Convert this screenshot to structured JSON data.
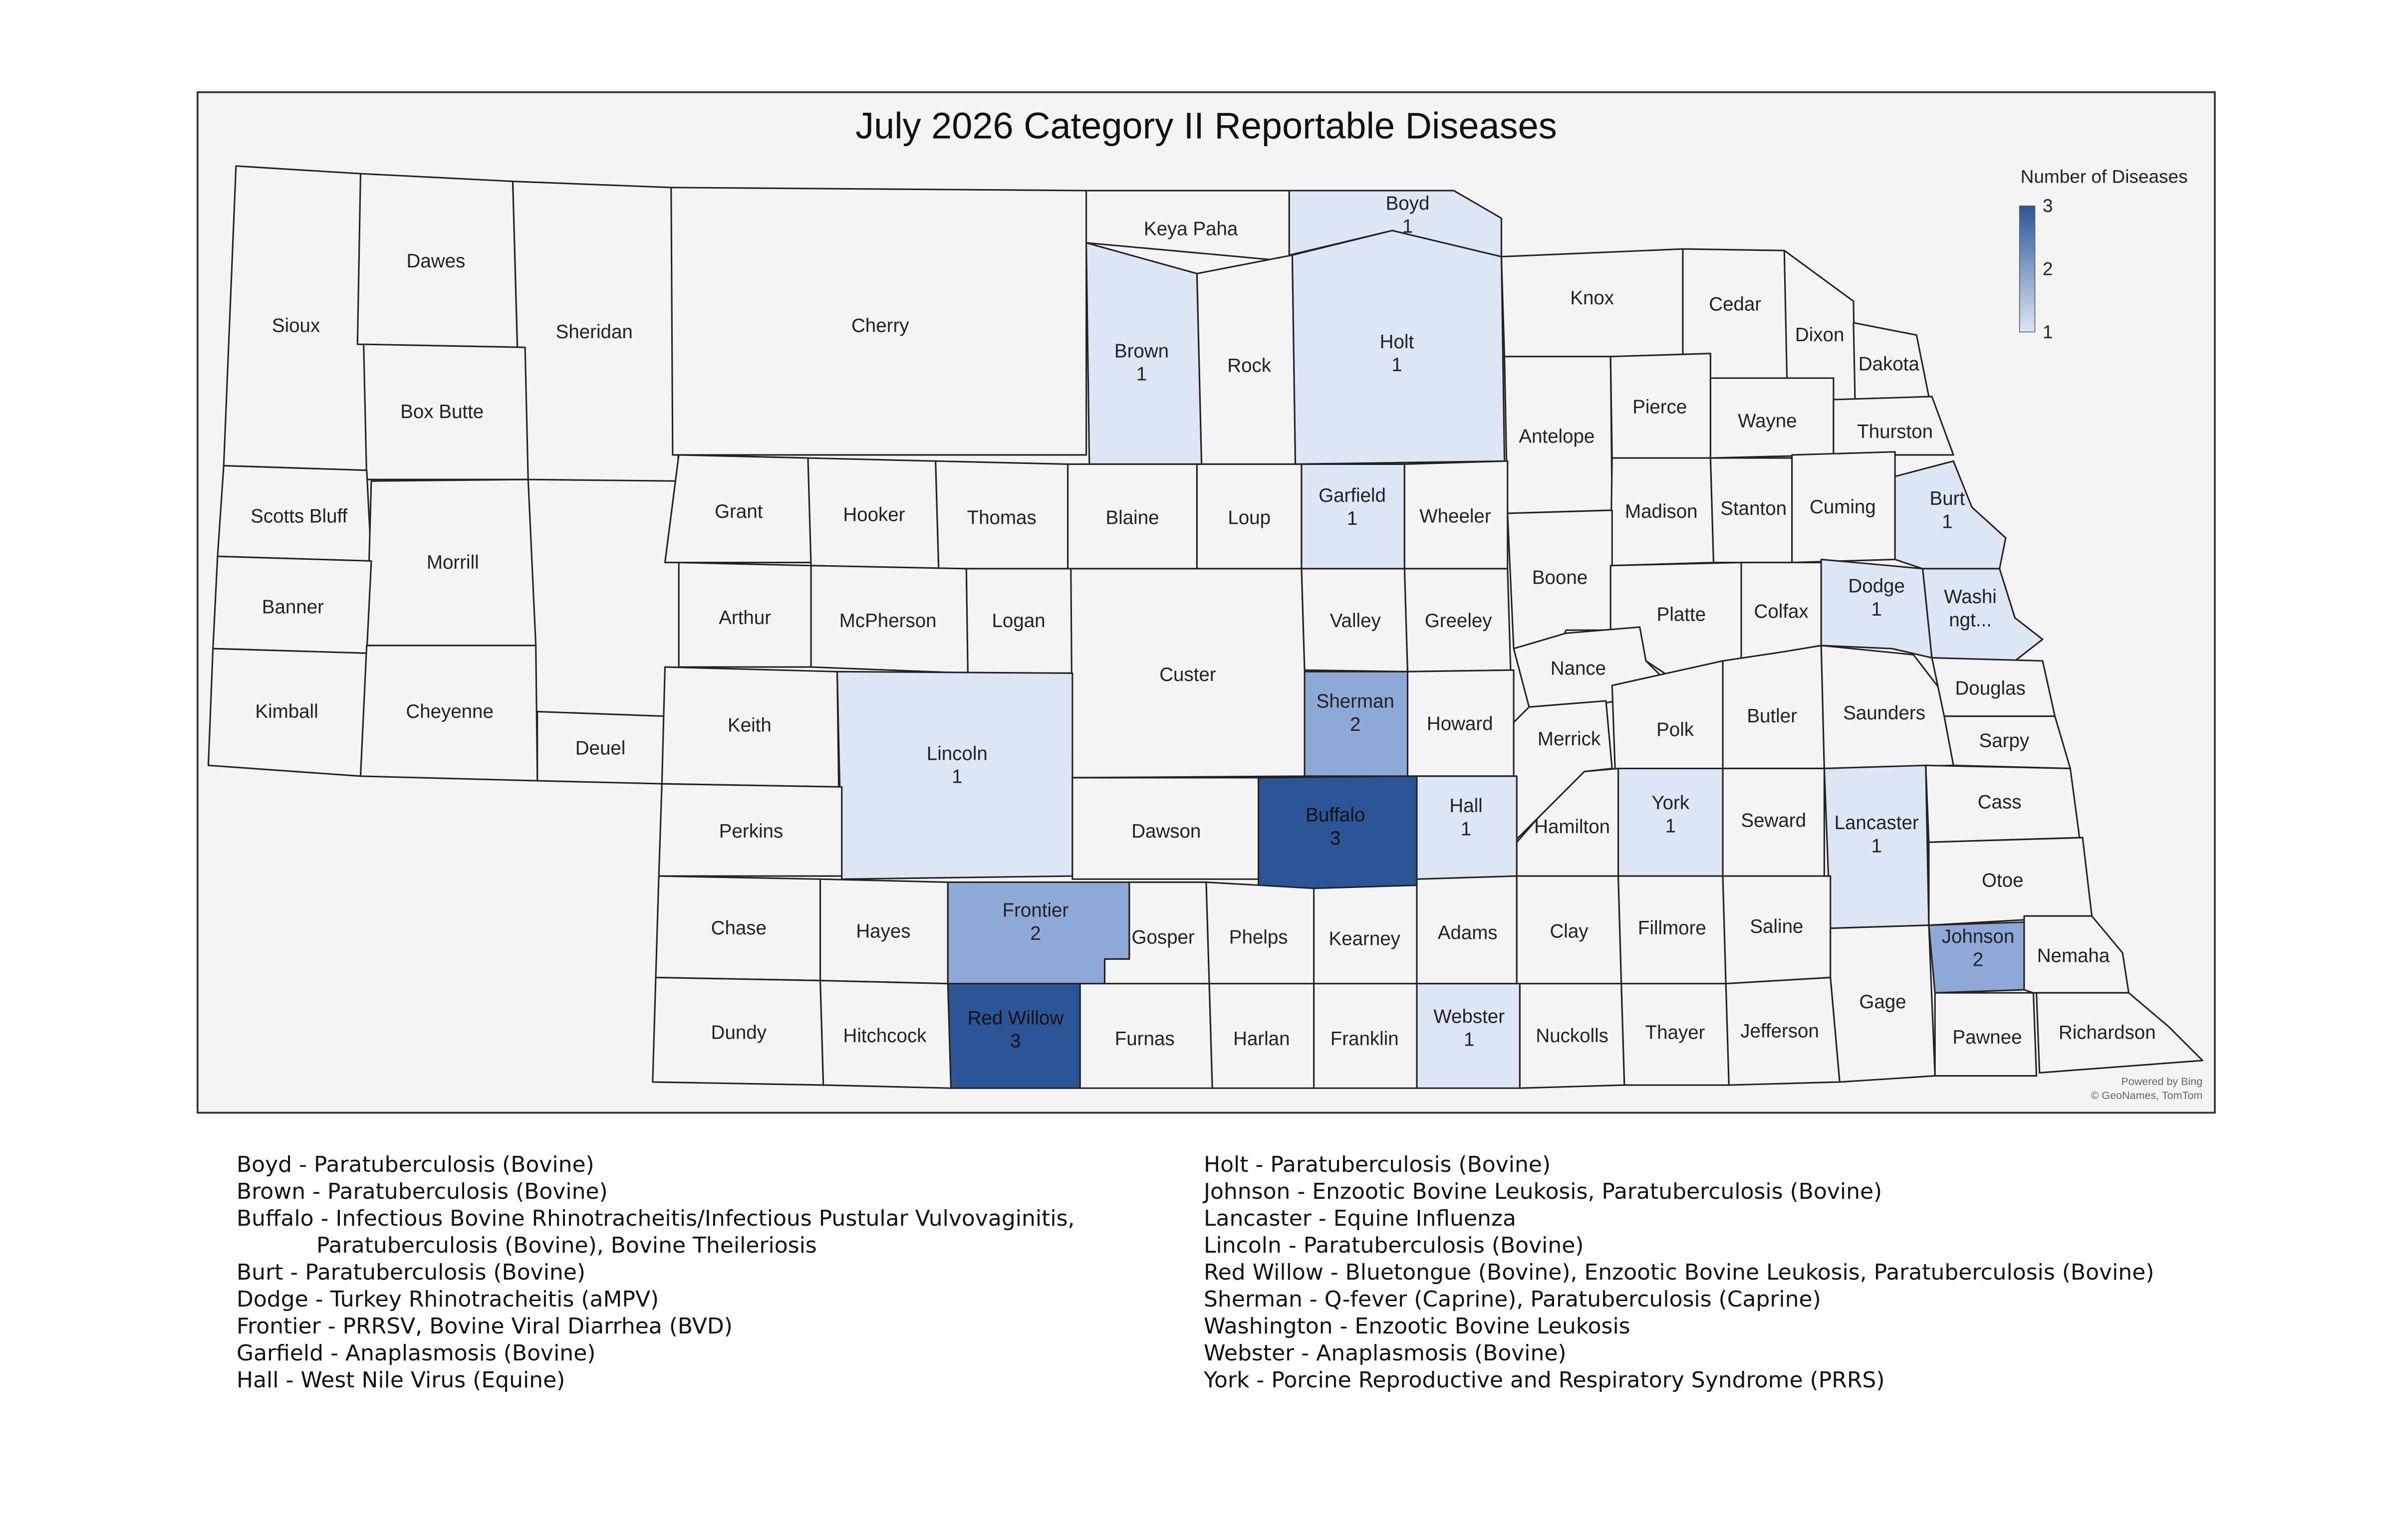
{
  "title": "July 2026 Category II Reportable Diseases",
  "legend": {
    "title": "Number of Diseases",
    "max_label": "3",
    "mid_label": "2",
    "min_label": "1",
    "min_color": "#dce6f4",
    "max_color": "#2b5597"
  },
  "colors": {
    "none": "#f4f4f4",
    "level1": "#dce6f4",
    "level2": "#8ea9d8",
    "level3": "#2b5597",
    "border": "#222222"
  },
  "attribution": {
    "line1": "Powered by Bing",
    "line2": "© GeoNames, TomTom"
  },
  "counties": [
    {
      "name": "Sioux"
    },
    {
      "name": "Dawes"
    },
    {
      "name": "Sheridan"
    },
    {
      "name": "Cherry"
    },
    {
      "name": "Keya Paha"
    },
    {
      "name": "Boyd",
      "count": "1",
      "level": 1
    },
    {
      "name": "Brown",
      "count": "1",
      "level": 1
    },
    {
      "name": "Rock"
    },
    {
      "name": "Holt",
      "count": "1",
      "level": 1
    },
    {
      "name": "Knox"
    },
    {
      "name": "Cedar"
    },
    {
      "name": "Dixon"
    },
    {
      "name": "Dakota"
    },
    {
      "name": "Box Butte"
    },
    {
      "name": "Antelope"
    },
    {
      "name": "Pierce"
    },
    {
      "name": "Wayne"
    },
    {
      "name": "Thurston"
    },
    {
      "name": "Scotts Bluff"
    },
    {
      "name": "Morrill"
    },
    {
      "name": "Grant"
    },
    {
      "name": "Hooker"
    },
    {
      "name": "Thomas"
    },
    {
      "name": "Blaine"
    },
    {
      "name": "Loup"
    },
    {
      "name": "Garfield",
      "count": "1",
      "level": 1
    },
    {
      "name": "Wheeler"
    },
    {
      "name": "Madison"
    },
    {
      "name": "Stanton"
    },
    {
      "name": "Cuming"
    },
    {
      "name": "Burt",
      "count": "1",
      "level": 1
    },
    {
      "name": "Banner"
    },
    {
      "name": "Arthur"
    },
    {
      "name": "McPherson"
    },
    {
      "name": "Logan"
    },
    {
      "name": "Custer"
    },
    {
      "name": "Valley"
    },
    {
      "name": "Greeley"
    },
    {
      "name": "Boone"
    },
    {
      "name": "Platte"
    },
    {
      "name": "Colfax"
    },
    {
      "name": "Dodge",
      "count": "1",
      "level": 1
    },
    {
      "name": "Washi\nngt...",
      "count": "",
      "level": 1
    },
    {
      "name": "Kimball"
    },
    {
      "name": "Cheyenne"
    },
    {
      "name": "Deuel"
    },
    {
      "name": "Keith"
    },
    {
      "name": "Lincoln",
      "count": "1",
      "level": 1
    },
    {
      "name": "Sherman",
      "count": "2",
      "level": 2
    },
    {
      "name": "Howard"
    },
    {
      "name": "Nance"
    },
    {
      "name": "Merrick"
    },
    {
      "name": "Polk"
    },
    {
      "name": "Butler"
    },
    {
      "name": "Saunders"
    },
    {
      "name": "Douglas"
    },
    {
      "name": "Sarpy"
    },
    {
      "name": "Perkins"
    },
    {
      "name": "Dawson"
    },
    {
      "name": "Buffalo",
      "count": "3",
      "level": 3
    },
    {
      "name": "Hall",
      "count": "1",
      "level": 1
    },
    {
      "name": "Hamilton"
    },
    {
      "name": "York",
      "count": "1",
      "level": 1
    },
    {
      "name": "Seward"
    },
    {
      "name": "Lancaster",
      "count": "1",
      "level": 1
    },
    {
      "name": "Cass"
    },
    {
      "name": "Otoe"
    },
    {
      "name": "Chase"
    },
    {
      "name": "Hayes"
    },
    {
      "name": "Frontier",
      "count": "2",
      "level": 2
    },
    {
      "name": "Gosper"
    },
    {
      "name": "Phelps"
    },
    {
      "name": "Kearney"
    },
    {
      "name": "Adams"
    },
    {
      "name": "Clay"
    },
    {
      "name": "Fillmore"
    },
    {
      "name": "Saline"
    },
    {
      "name": "Gage"
    },
    {
      "name": "Johnson",
      "count": "2",
      "level": 2
    },
    {
      "name": "Nemaha"
    },
    {
      "name": "Dundy"
    },
    {
      "name": "Hitchcock"
    },
    {
      "name": "Red Willow",
      "count": "3",
      "level": 3
    },
    {
      "name": "Furnas"
    },
    {
      "name": "Harlan"
    },
    {
      "name": "Franklin"
    },
    {
      "name": "Webster",
      "count": "1",
      "level": 1
    },
    {
      "name": "Nuckolls"
    },
    {
      "name": "Thayer"
    },
    {
      "name": "Jefferson"
    },
    {
      "name": "Pawnee"
    },
    {
      "name": "Richardson"
    }
  ],
  "notes_left": [
    "Boyd - Paratuberculosis (Bovine)",
    "Brown - Paratuberculosis (Bovine)",
    "Buffalo - Infectious Bovine Rhinotracheitis/Infectious Pustular Vulvovaginitis,",
    "Paratuberculosis (Bovine), Bovine Theileriosis",
    "Burt - Paratuberculosis (Bovine)",
    "Dodge - Turkey Rhinotracheitis (aMPV)",
    "Frontier - PRRSV, Bovine Viral Diarrhea (BVD)",
    "Garfield - Anaplasmosis (Bovine)",
    "Hall - West Nile Virus (Equine)"
  ],
  "notes_right": [
    "Holt - Paratuberculosis (Bovine)",
    "Johnson - Enzootic Bovine Leukosis, Paratuberculosis (Bovine)",
    "Lancaster - Equine Influenza",
    "Lincoln - Paratuberculosis (Bovine)",
    "Red Willow - Bluetongue (Bovine), Enzootic Bovine Leukosis, Paratuberculosis (Bovine)",
    "Sherman - Q-fever (Caprine), Paratuberculosis (Caprine)",
    "Washington - Enzootic Bovine Leukosis",
    "Webster - Anaplasmosis (Bovine)",
    "York - Porcine Reproductive and Respiratory Syndrome (PRRS)"
  ]
}
